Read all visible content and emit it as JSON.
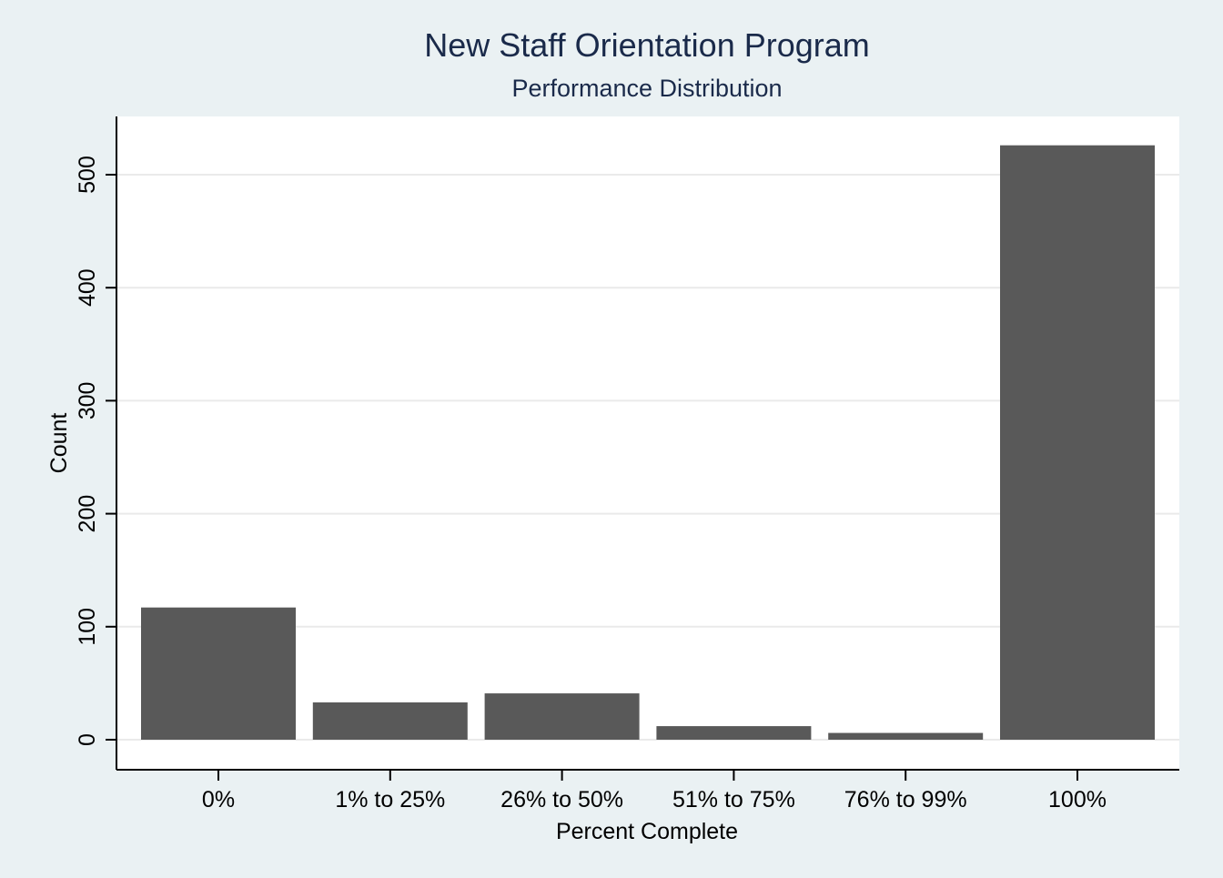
{
  "chart_data": {
    "type": "bar",
    "title": "New Staff Orientation Program",
    "subtitle": "Performance Distribution",
    "xlabel": "Percent Complete",
    "ylabel": "Count",
    "categories": [
      "0%",
      "1% to 25%",
      "26% to 50%",
      "51% to 75%",
      "76% to 99%",
      "100%"
    ],
    "values": [
      117,
      33,
      41,
      12,
      6,
      526
    ],
    "ylim": [
      0,
      540
    ],
    "yticks": [
      0,
      100,
      200,
      300,
      400,
      500
    ],
    "ytick_labels": [
      "0",
      "100",
      "200",
      "300",
      "400",
      "500"
    ],
    "grid": true,
    "legend": "none"
  },
  "colors": {
    "page_background": "#eaf1f3",
    "plot_background": "#ffffff",
    "bar": "#595959",
    "title": "#1a2a4a",
    "grid": "#eaeaea",
    "axis": "#000000"
  }
}
